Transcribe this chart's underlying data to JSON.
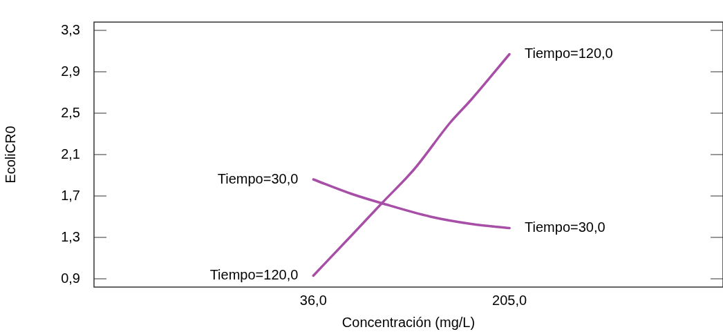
{
  "chart_data": {
    "type": "line",
    "xlabel": "Concentración (mg/L)",
    "ylabel": "EcoliCR0",
    "xlim": [
      -153,
      389
    ],
    "xticks": [
      {
        "value": 36,
        "label": "36,0"
      },
      {
        "value": 205,
        "label": "205,0"
      }
    ],
    "ylim": [
      0.82,
      3.38
    ],
    "yticks": [
      {
        "value": 0.9,
        "label": "0,9"
      },
      {
        "value": 1.3,
        "label": "1,3"
      },
      {
        "value": 1.7,
        "label": "1,7"
      },
      {
        "value": 2.1,
        "label": "2,1"
      },
      {
        "value": 2.5,
        "label": "2,5"
      },
      {
        "value": 2.9,
        "label": "2,9"
      },
      {
        "value": 3.3,
        "label": "3,3"
      }
    ],
    "series": [
      {
        "name": "Tiempo=30,0",
        "color": "#a74fa7",
        "x": [
          36,
          69,
          95,
          137,
          172,
          205
        ],
        "values": [
          1.86,
          1.72,
          1.63,
          1.5,
          1.43,
          1.39
        ]
      },
      {
        "name": "Tiempo=120,0",
        "color": "#a74fa7",
        "x": [
          36,
          69,
          95,
          123,
          154,
          172,
          205
        ],
        "values": [
          0.93,
          1.32,
          1.63,
          1.96,
          2.41,
          2.63,
          3.07
        ]
      }
    ],
    "legend": false,
    "marker": "none",
    "line_style": "solid"
  }
}
